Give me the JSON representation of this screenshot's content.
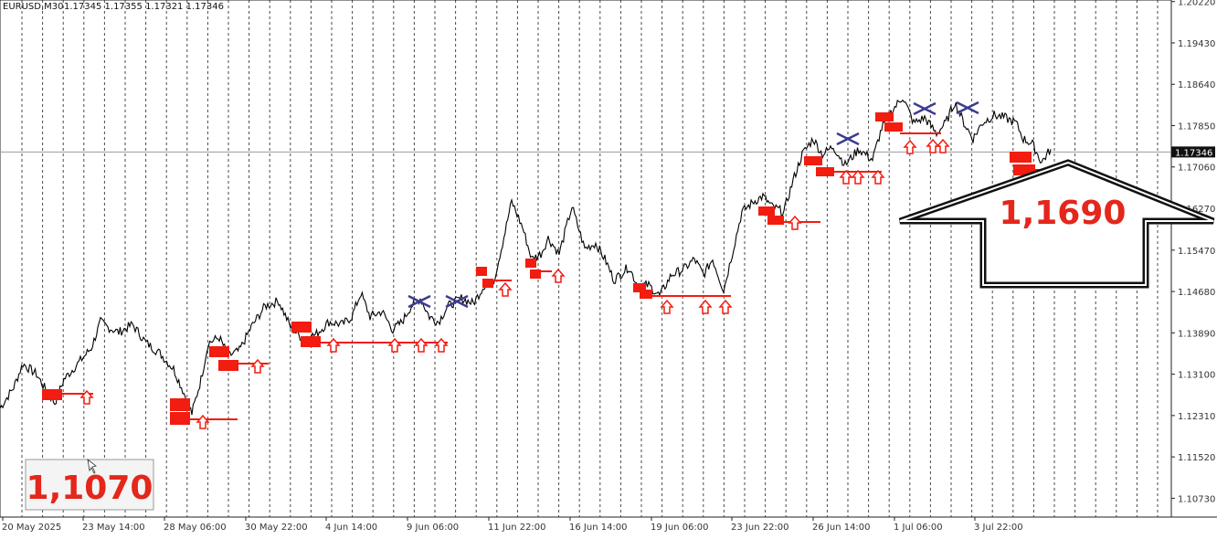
{
  "chart_data": {
    "type": "line",
    "symbol": "EURUSD,M30",
    "ohlc_header": "1.17345 1.17355 1.17321 1.17346",
    "current_price": "1.17346",
    "y_ticks": [
      "1.20220",
      "1.19430",
      "1.18640",
      "1.17850",
      "1.17060",
      "1.16270",
      "1.15470",
      "1.14680",
      "1.13890",
      "1.13100",
      "1.12310",
      "1.11520",
      "1.10730"
    ],
    "ylim": [
      1.1037,
      1.2025
    ],
    "x_ticks": [
      "20 May 2025",
      "23 May 14:00",
      "28 May 06:00",
      "30 May 22:00",
      "4 Jun 14:00",
      "9 Jun 06:00",
      "11 Jun 22:00",
      "16 Jun 14:00",
      "19 Jun 06:00",
      "23 Jun 22:00",
      "26 Jun 14:00",
      "1 Jul 06:00",
      "3 Jul 22:00"
    ],
    "series": [
      {
        "values": [
          [
            0,
            1.1245
          ],
          [
            15,
            1.1285
          ],
          [
            25,
            1.133
          ],
          [
            40,
            1.131
          ],
          [
            50,
            1.128
          ],
          [
            60,
            1.1255
          ],
          [
            70,
            1.13
          ],
          [
            85,
            1.133
          ],
          [
            100,
            1.136
          ],
          [
            110,
            1.141
          ],
          [
            118,
            1.14
          ],
          [
            130,
            1.139
          ],
          [
            145,
            1.1405
          ],
          [
            160,
            1.137
          ],
          [
            175,
            1.135
          ],
          [
            190,
            1.132
          ],
          [
            200,
            1.128
          ],
          [
            210,
            1.1235
          ],
          [
            220,
            1.13
          ],
          [
            228,
            1.137
          ],
          [
            240,
            1.138
          ],
          [
            250,
            1.1345
          ],
          [
            262,
            1.1355
          ],
          [
            275,
            1.14
          ],
          [
            290,
            1.144
          ],
          [
            305,
            1.145
          ],
          [
            318,
            1.14
          ],
          [
            330,
            1.138
          ],
          [
            345,
            1.1385
          ],
          [
            360,
            1.141
          ],
          [
            375,
            1.1405
          ],
          [
            385,
            1.142
          ],
          [
            395,
            1.1465
          ],
          [
            405,
            1.142
          ],
          [
            418,
            1.143
          ],
          [
            430,
            1.1395
          ],
          [
            440,
            1.141
          ],
          [
            450,
            1.144
          ],
          [
            460,
            1.1455
          ],
          [
            470,
            1.142
          ],
          [
            480,
            1.141
          ],
          [
            490,
            1.144
          ],
          [
            505,
            1.1455
          ],
          [
            518,
            1.1445
          ],
          [
            530,
            1.148
          ],
          [
            540,
            1.1485
          ],
          [
            550,
            1.156
          ],
          [
            560,
            1.164
          ],
          [
            572,
            1.159
          ],
          [
            582,
            1.153
          ],
          [
            592,
            1.154
          ],
          [
            600,
            1.157
          ],
          [
            612,
            1.154
          ],
          [
            626,
            1.163
          ],
          [
            640,
            1.155
          ],
          [
            652,
            1.156
          ],
          [
            662,
            1.153
          ],
          [
            672,
            1.149
          ],
          [
            688,
            1.1515
          ],
          [
            698,
            1.148
          ],
          [
            710,
            1.148
          ],
          [
            722,
            1.146
          ],
          [
            735,
            1.15
          ],
          [
            748,
            1.151
          ],
          [
            760,
            1.153
          ],
          [
            770,
            1.15
          ],
          [
            780,
            1.153
          ],
          [
            792,
            1.147
          ],
          [
            800,
            1.153
          ],
          [
            812,
            1.162
          ],
          [
            825,
            1.164
          ],
          [
            835,
            1.165
          ],
          [
            845,
            1.163
          ],
          [
            858,
            1.162
          ],
          [
            868,
            1.168
          ],
          [
            878,
            1.173
          ],
          [
            890,
            1.176
          ],
          [
            900,
            1.173
          ],
          [
            912,
            1.1745
          ],
          [
            925,
            1.171
          ],
          [
            940,
            1.174
          ],
          [
            955,
            1.172
          ],
          [
            965,
            1.178
          ],
          [
            975,
            1.181
          ],
          [
            988,
            1.184
          ],
          [
            1000,
            1.179
          ],
          [
            1012,
            1.18
          ],
          [
            1025,
            1.177
          ],
          [
            1035,
            1.179
          ],
          [
            1045,
            1.183
          ],
          [
            1055,
            1.179
          ],
          [
            1065,
            1.176
          ],
          [
            1075,
            1.179
          ],
          [
            1088,
            1.1805
          ],
          [
            1100,
            1.18
          ],
          [
            1112,
            1.179
          ],
          [
            1120,
            1.176
          ],
          [
            1130,
            1.175
          ],
          [
            1140,
            1.1715
          ],
          [
            1150,
            1.174
          ]
        ]
      }
    ],
    "annotations": {
      "low_price_label": "1,1070",
      "target_price_label": "1,1690"
    }
  }
}
